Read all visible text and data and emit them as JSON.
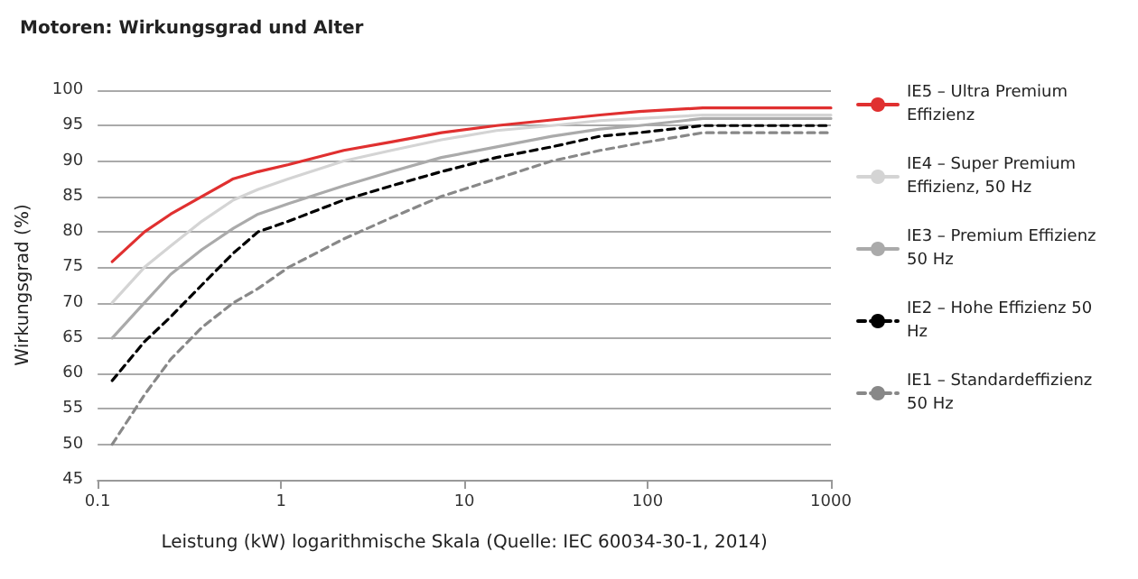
{
  "chart_data": {
    "type": "line",
    "title": "Motoren: Wirkungsgrad und Alter",
    "xlabel": "Leistung (kW) logarithmische Skala (Quelle: IEC 60034-30-1, 2014)",
    "ylabel": "Wirkungsgrad (%)",
    "x": [
      0.12,
      0.18,
      0.25,
      0.37,
      0.55,
      0.75,
      1.1,
      2.2,
      4,
      7.5,
      15,
      30,
      55,
      90,
      200,
      1000
    ],
    "series": [
      {
        "name": "IE5 – Ultra Premium Effizienz",
        "color": "#e03030",
        "line_style": "solid",
        "values": [
          75.8,
          80,
          82.5,
          85,
          87.5,
          88.5,
          89.5,
          91.5,
          92.7,
          94,
          95,
          95.8,
          96.5,
          97,
          97.5,
          97.5
        ]
      },
      {
        "name": "IE4 – Super Premium Effizienz, 50 Hz",
        "color": "#d4d4d4",
        "line_style": "solid",
        "values": [
          70,
          75,
          78,
          81.5,
          84.5,
          86,
          87.5,
          90,
          91.5,
          93,
          94.3,
          95,
          95.7,
          96,
          96.5,
          96.5
        ]
      },
      {
        "name": "IE3 – Premium Effizienz 50 Hz",
        "color": "#aaaaaa",
        "line_style": "solid",
        "values": [
          65,
          70,
          74,
          77.5,
          80.5,
          82.5,
          84,
          86.5,
          88.5,
          90.5,
          92,
          93.5,
          94.5,
          95,
          96,
          96
        ]
      },
      {
        "name": "IE2 – Hohe Effizienz 50 Hz",
        "color": "#000000",
        "line_style": "dashed",
        "values": [
          59,
          64.5,
          68,
          72.5,
          77,
          80,
          81.5,
          84.5,
          86.5,
          88.5,
          90.5,
          92,
          93.5,
          94,
          95,
          95
        ]
      },
      {
        "name": "IE1 – Standardeffizienz 50 Hz",
        "color": "#888888",
        "line_style": "dashed",
        "values": [
          50,
          57,
          62,
          66.5,
          70,
          72,
          75,
          79,
          82,
          85,
          87.5,
          90,
          91.5,
          92.5,
          94,
          94
        ]
      }
    ],
    "log": "x",
    "xlim": [
      0.1,
      1000
    ],
    "xticks": [
      0.1,
      1,
      10,
      100,
      1000
    ],
    "ylim": [
      45,
      100
    ],
    "yticks": [
      45,
      50,
      55,
      60,
      65,
      70,
      75,
      80,
      85,
      90,
      95,
      100
    ],
    "grid": "y",
    "legend": "right",
    "marker": "none"
  }
}
